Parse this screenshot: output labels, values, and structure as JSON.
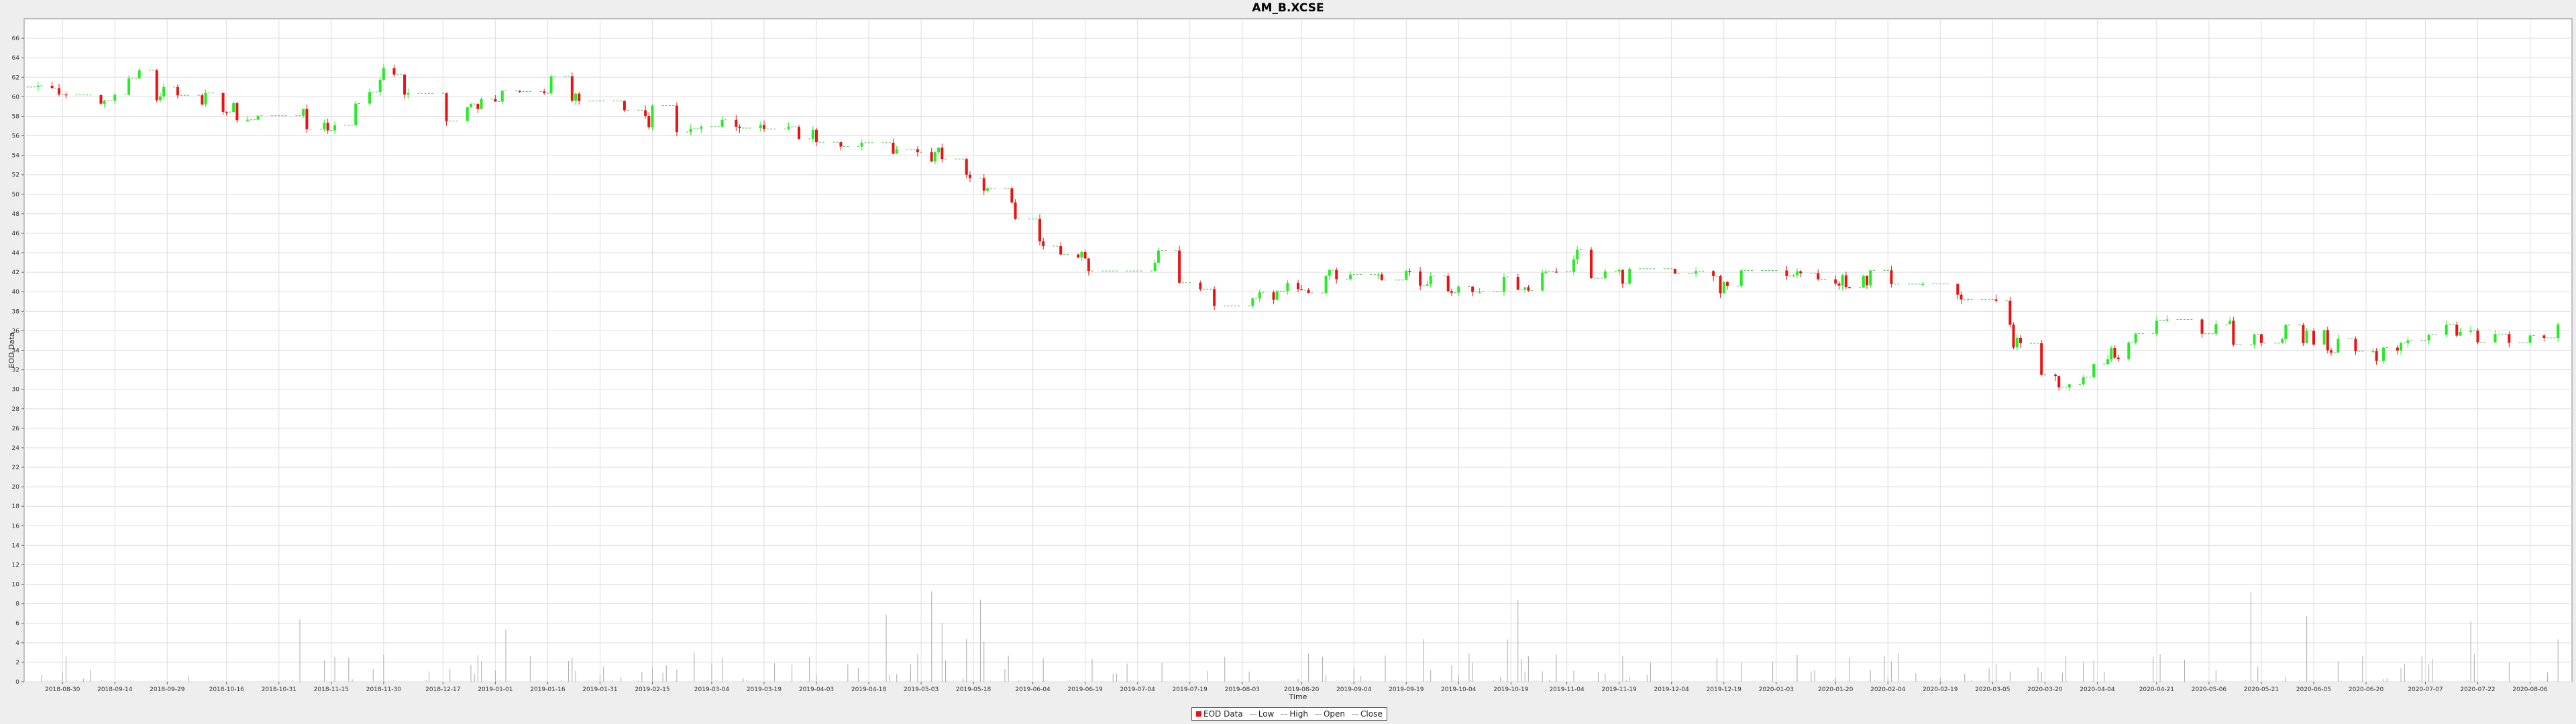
{
  "chart_data": {
    "type": "candlestick",
    "title": "AM_B.XCSE",
    "xlabel": "Time",
    "ylabel": "EOD Data",
    "ylim": [
      0,
      68
    ],
    "y_ticks": [
      0,
      2,
      4,
      6,
      8,
      10,
      12,
      14,
      16,
      18,
      20,
      22,
      24,
      26,
      28,
      30,
      32,
      34,
      36,
      38,
      40,
      42,
      44,
      46,
      48,
      50,
      52,
      54,
      56,
      58,
      60,
      62,
      64,
      66
    ],
    "x_tick_labels": [
      "2018-08-30",
      "2018-09-14",
      "2018-09-29",
      "2018-10-16",
      "2018-10-31",
      "2018-11-15",
      "2018-11-30",
      "2018-12-17",
      "2019-01-01",
      "2019-01-16",
      "2019-01-31",
      "2019-02-15",
      "2019-03-04",
      "2019-03-19",
      "2019-04-03",
      "2019-04-18",
      "2019-05-03",
      "2019-05-18",
      "2019-06-04",
      "2019-06-19",
      "2019-07-04",
      "2019-07-19",
      "2019-08-03",
      "2019-08-20",
      "2019-09-04",
      "2019-09-19",
      "2019-10-04",
      "2019-10-19",
      "2019-11-04",
      "2019-11-19",
      "2019-12-04",
      "2019-12-19",
      "2020-01-03",
      "2020-01-20",
      "2020-02-04",
      "2020-02-19",
      "2020-03-05",
      "2020-03-20",
      "2020-04-04",
      "2020-04-21",
      "2020-05-06",
      "2020-05-21",
      "2020-06-05",
      "2020-06-20",
      "2020-07-07",
      "2020-07-22",
      "2020-08-06"
    ],
    "x_range": [
      "2018-08-19",
      "2020-08-18"
    ],
    "grid": true,
    "legend_position": "bottom-center",
    "legend": [
      "EOD Data",
      "Low",
      "High",
      "Open",
      "Close"
    ],
    "colors": {
      "up": "#22ee22",
      "down": "#ee1111",
      "flat": "#55bb55",
      "volume": "#aaaaaa",
      "grid": "#dddddd"
    },
    "series_anchors": [
      [
        "2018-08-20",
        61.0
      ],
      [
        "2018-09-05",
        58.5
      ],
      [
        "2018-09-20",
        61.5
      ],
      [
        "2018-10-05",
        60.0
      ],
      [
        "2018-10-25",
        57.8
      ],
      [
        "2018-11-15",
        57.0
      ],
      [
        "2018-11-30",
        62.0
      ],
      [
        "2018-12-20",
        58.0
      ],
      [
        "2019-01-10",
        61.5
      ],
      [
        "2019-01-31",
        59.5
      ],
      [
        "2019-02-20",
        57.5
      ],
      [
        "2019-03-10",
        57.0
      ],
      [
        "2019-03-25",
        56.0
      ],
      [
        "2019-04-15",
        55.0
      ],
      [
        "2019-05-05",
        54.5
      ],
      [
        "2019-05-25",
        50.0
      ],
      [
        "2019-06-05",
        45.0
      ],
      [
        "2019-06-20",
        43.5
      ],
      [
        "2019-07-04",
        44.5
      ],
      [
        "2019-07-20",
        40.0
      ],
      [
        "2019-08-05",
        39.0
      ],
      [
        "2019-08-20",
        40.5
      ],
      [
        "2019-09-05",
        42.0
      ],
      [
        "2019-09-20",
        41.5
      ],
      [
        "2019-10-05",
        39.5
      ],
      [
        "2019-10-20",
        41.0
      ],
      [
        "2019-11-04",
        43.0
      ],
      [
        "2019-11-20",
        42.0
      ],
      [
        "2019-12-05",
        41.5
      ],
      [
        "2019-12-20",
        41.0
      ],
      [
        "2020-01-05",
        42.0
      ],
      [
        "2020-01-20",
        41.5
      ],
      [
        "2020-02-05",
        41.0
      ],
      [
        "2020-02-20",
        40.0
      ],
      [
        "2020-03-05",
        40.0
      ],
      [
        "2020-03-16",
        32.0
      ],
      [
        "2020-03-28",
        30.0
      ],
      [
        "2020-04-10",
        34.0
      ],
      [
        "2020-04-21",
        37.0
      ],
      [
        "2020-05-06",
        36.0
      ],
      [
        "2020-05-21",
        35.5
      ],
      [
        "2020-06-05",
        35.0
      ],
      [
        "2020-06-20",
        33.5
      ],
      [
        "2020-07-07",
        36.0
      ],
      [
        "2020-07-22",
        36.0
      ],
      [
        "2020-08-15",
        35.5
      ]
    ],
    "volume_max": 10
  },
  "legend_labels": {
    "eod": "EOD Data",
    "low": "Low",
    "high": "High",
    "open": "Open",
    "close": "Close"
  }
}
